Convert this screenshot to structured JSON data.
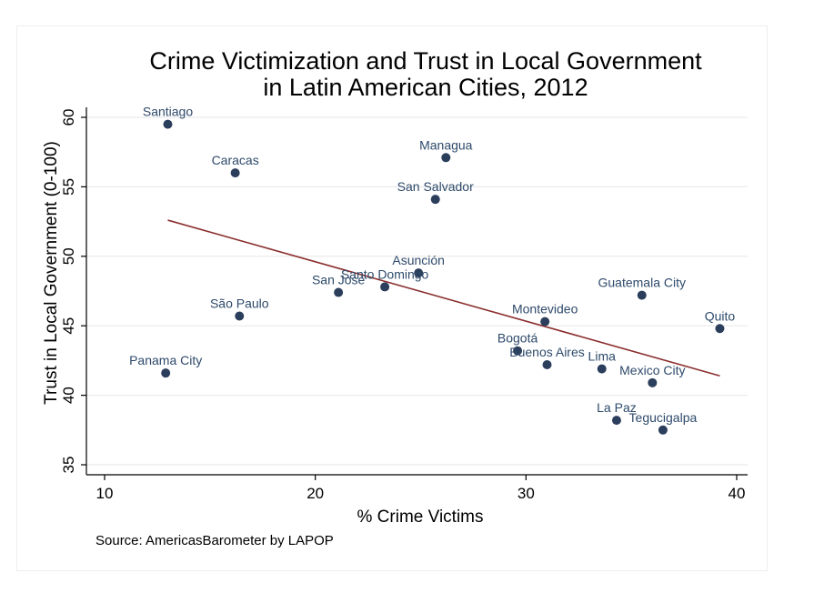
{
  "chart_data": {
    "type": "scatter",
    "title_lines": [
      "Crime Victimization and Trust in Local Government",
      "in Latin American Cities, 2012"
    ],
    "xlabel": "% Crime Victims",
    "ylabel": "Trust in Local Government (0-100)",
    "note": "Source: AmericasBarometer by LAPOP",
    "xlim": [
      10,
      40
    ],
    "ylim": [
      35,
      60
    ],
    "xticks": [
      10,
      20,
      30,
      40
    ],
    "yticks": [
      35,
      40,
      45,
      50,
      55,
      60
    ],
    "grid": "horizontal",
    "point_color": "#2b3e5c",
    "fit_color": "#8b2e2e",
    "points": [
      {
        "label": "Santiago",
        "x": 13.0,
        "y": 59.5
      },
      {
        "label": "Caracas",
        "x": 16.2,
        "y": 56.0
      },
      {
        "label": "Managua",
        "x": 26.2,
        "y": 57.1
      },
      {
        "label": "San Salvador",
        "x": 25.7,
        "y": 54.1
      },
      {
        "label": "Asunción",
        "x": 24.9,
        "y": 48.8
      },
      {
        "label": "Santo Domingo",
        "x": 23.3,
        "y": 47.8
      },
      {
        "label": "San José",
        "x": 21.1,
        "y": 47.4
      },
      {
        "label": "São Paulo",
        "x": 16.4,
        "y": 45.7
      },
      {
        "label": "Panama City",
        "x": 12.9,
        "y": 41.6
      },
      {
        "label": "Montevideo",
        "x": 30.9,
        "y": 45.3
      },
      {
        "label": "Guatemala City",
        "x": 35.5,
        "y": 47.2
      },
      {
        "label": "Quito",
        "x": 39.2,
        "y": 44.8
      },
      {
        "label": "Bogotá",
        "x": 29.6,
        "y": 43.2
      },
      {
        "label": "Buenos Aires",
        "x": 31.0,
        "y": 42.2
      },
      {
        "label": "Lima",
        "x": 33.6,
        "y": 41.9
      },
      {
        "label": "Mexico City",
        "x": 36.0,
        "y": 40.9
      },
      {
        "label": "La Paz",
        "x": 34.3,
        "y": 38.2
      },
      {
        "label": "Tegucigalpa",
        "x": 36.5,
        "y": 37.5
      }
    ],
    "fit_line": {
      "x": [
        13.0,
        39.2
      ],
      "y": [
        52.6,
        41.4
      ]
    }
  }
}
